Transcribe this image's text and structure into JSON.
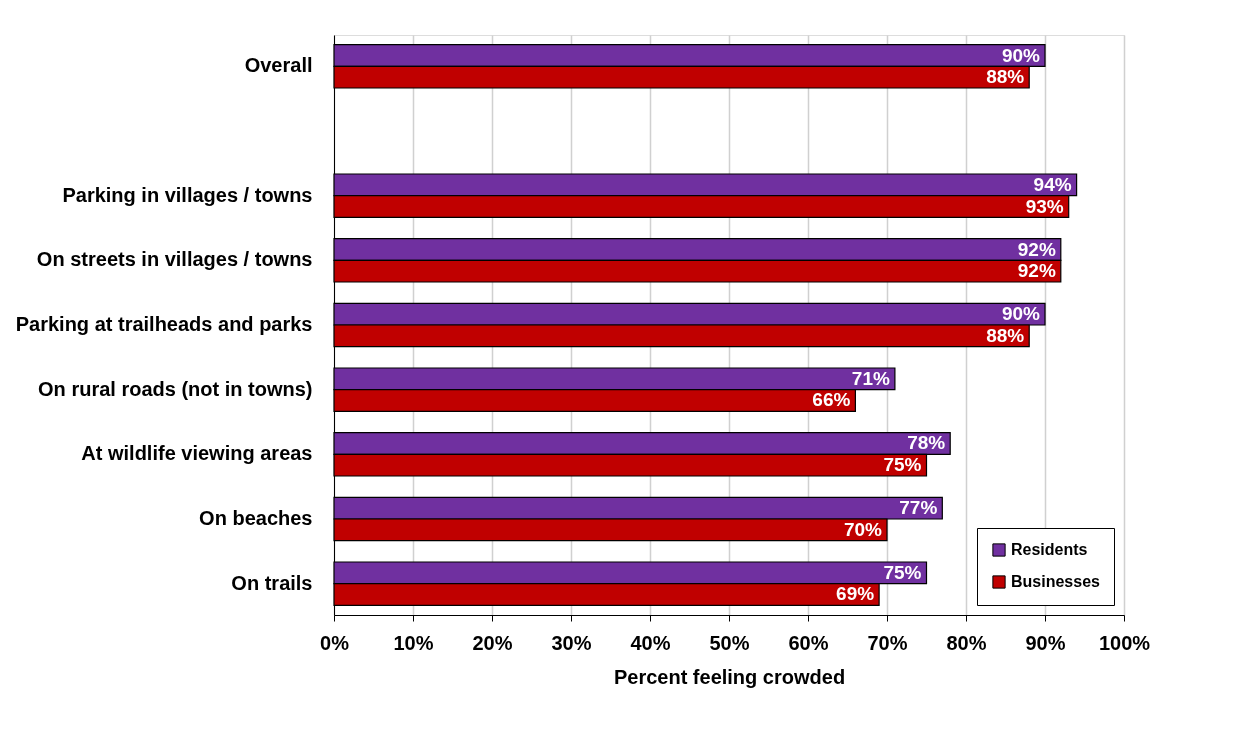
{
  "chart_data": {
    "type": "bar",
    "orientation": "horizontal",
    "xlabel": "Percent feeling crowded",
    "categories": [
      "Overall",
      null,
      "Parking in villages / towns",
      "On streets in villages / towns",
      "Parking at trailheads and parks",
      "On rural roads (not in towns)",
      "At wildlife viewing areas",
      "On beaches",
      "On trails"
    ],
    "series": [
      {
        "name": "Residents",
        "color": "#7030a0",
        "values": [
          90,
          null,
          94,
          92,
          90,
          71,
          78,
          77,
          75
        ],
        "value_labels": [
          "90%",
          null,
          "94%",
          "92%",
          "90%",
          "71%",
          "78%",
          "77%",
          "75%"
        ]
      },
      {
        "name": "Businesses",
        "color": "#c00000",
        "values": [
          88,
          null,
          93,
          92,
          88,
          66,
          75,
          70,
          69
        ],
        "value_labels": [
          "88%",
          null,
          "93%",
          "92%",
          "88%",
          "66%",
          "75%",
          "70%",
          "69%"
        ]
      }
    ],
    "xlim": [
      0,
      100
    ],
    "xticks": [
      {
        "value": 0,
        "label": "0%"
      },
      {
        "value": 10,
        "label": "10%"
      },
      {
        "value": 20,
        "label": "20%"
      },
      {
        "value": 30,
        "label": "30%"
      },
      {
        "value": 40,
        "label": "40%"
      },
      {
        "value": 50,
        "label": "50%"
      },
      {
        "value": 60,
        "label": "60%"
      },
      {
        "value": 70,
        "label": "70%"
      },
      {
        "value": 80,
        "label": "80%"
      },
      {
        "value": 90,
        "label": "90%"
      },
      {
        "value": 100,
        "label": "100%"
      }
    ],
    "grid": "x",
    "legend": "bottom right"
  }
}
